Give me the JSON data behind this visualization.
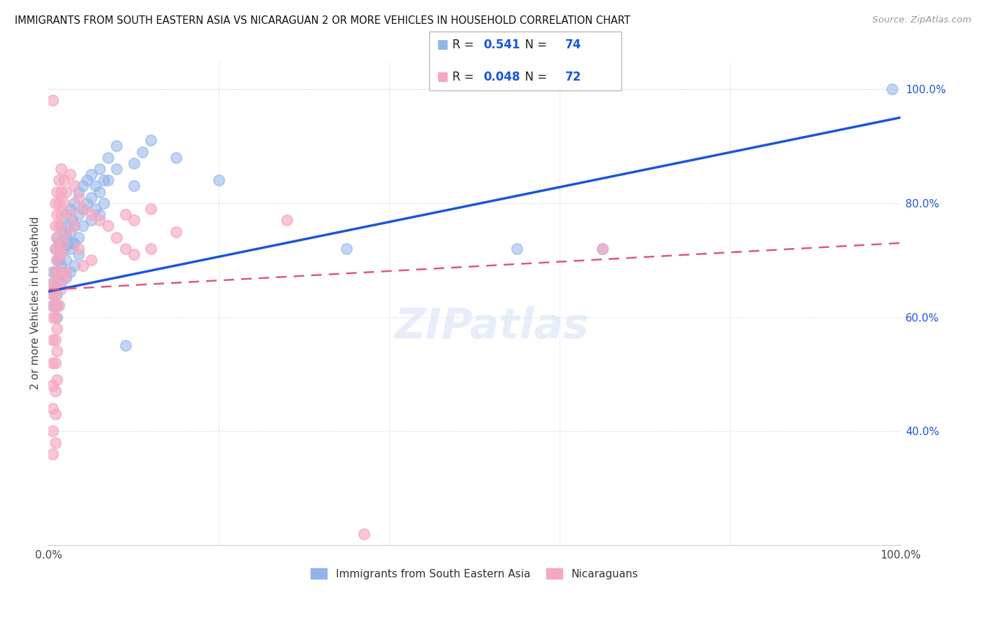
{
  "title": "IMMIGRANTS FROM SOUTH EASTERN ASIA VS NICARAGUAN 2 OR MORE VEHICLES IN HOUSEHOLD CORRELATION CHART",
  "source": "Source: ZipAtlas.com",
  "ylabel": "2 or more Vehicles in Household",
  "legend_label1": "Immigrants from South Eastern Asia",
  "legend_label2": "Nicaraguans",
  "R1": "0.541",
  "N1": "74",
  "R2": "0.048",
  "N2": "72",
  "blue_color": "#92b4e8",
  "pink_color": "#f5a8c0",
  "blue_line_color": "#1a56db",
  "pink_line_color": "#e05585",
  "title_color": "#111111",
  "source_color": "#999999",
  "label_color": "#1a56db",
  "xlim": [
    0.0,
    1.0
  ],
  "ylim": [
    0.2,
    1.05
  ],
  "right_ytick_vals": [
    0.4,
    0.6,
    0.8,
    1.0
  ],
  "right_ytick_labels": [
    "40.0%",
    "60.0%",
    "80.0%",
    "100.0%"
  ],
  "blue_scatter": [
    [
      0.005,
      0.66
    ],
    [
      0.005,
      0.68
    ],
    [
      0.005,
      0.64
    ],
    [
      0.005,
      0.62
    ],
    [
      0.008,
      0.72
    ],
    [
      0.008,
      0.68
    ],
    [
      0.008,
      0.65
    ],
    [
      0.008,
      0.62
    ],
    [
      0.01,
      0.74
    ],
    [
      0.01,
      0.7
    ],
    [
      0.01,
      0.68
    ],
    [
      0.01,
      0.66
    ],
    [
      0.01,
      0.64
    ],
    [
      0.01,
      0.62
    ],
    [
      0.01,
      0.6
    ],
    [
      0.012,
      0.73
    ],
    [
      0.012,
      0.7
    ],
    [
      0.012,
      0.67
    ],
    [
      0.015,
      0.76
    ],
    [
      0.015,
      0.72
    ],
    [
      0.015,
      0.69
    ],
    [
      0.015,
      0.66
    ],
    [
      0.018,
      0.75
    ],
    [
      0.018,
      0.72
    ],
    [
      0.018,
      0.68
    ],
    [
      0.02,
      0.78
    ],
    [
      0.02,
      0.74
    ],
    [
      0.02,
      0.7
    ],
    [
      0.02,
      0.67
    ],
    [
      0.022,
      0.76
    ],
    [
      0.022,
      0.73
    ],
    [
      0.025,
      0.79
    ],
    [
      0.025,
      0.75
    ],
    [
      0.025,
      0.72
    ],
    [
      0.025,
      0.68
    ],
    [
      0.028,
      0.77
    ],
    [
      0.028,
      0.73
    ],
    [
      0.03,
      0.8
    ],
    [
      0.03,
      0.76
    ],
    [
      0.03,
      0.73
    ],
    [
      0.03,
      0.69
    ],
    [
      0.035,
      0.82
    ],
    [
      0.035,
      0.78
    ],
    [
      0.035,
      0.74
    ],
    [
      0.035,
      0.71
    ],
    [
      0.04,
      0.83
    ],
    [
      0.04,
      0.79
    ],
    [
      0.04,
      0.76
    ],
    [
      0.045,
      0.84
    ],
    [
      0.045,
      0.8
    ],
    [
      0.05,
      0.85
    ],
    [
      0.05,
      0.81
    ],
    [
      0.05,
      0.77
    ],
    [
      0.055,
      0.83
    ],
    [
      0.055,
      0.79
    ],
    [
      0.06,
      0.86
    ],
    [
      0.06,
      0.82
    ],
    [
      0.06,
      0.78
    ],
    [
      0.065,
      0.84
    ],
    [
      0.065,
      0.8
    ],
    [
      0.07,
      0.88
    ],
    [
      0.07,
      0.84
    ],
    [
      0.08,
      0.9
    ],
    [
      0.08,
      0.86
    ],
    [
      0.09,
      0.55
    ],
    [
      0.1,
      0.87
    ],
    [
      0.1,
      0.83
    ],
    [
      0.11,
      0.89
    ],
    [
      0.12,
      0.91
    ],
    [
      0.15,
      0.88
    ],
    [
      0.2,
      0.84
    ],
    [
      0.35,
      0.72
    ],
    [
      0.55,
      0.72
    ],
    [
      0.65,
      0.72
    ],
    [
      0.99,
      1.0
    ]
  ],
  "pink_scatter": [
    [
      0.005,
      0.98
    ],
    [
      0.005,
      0.66
    ],
    [
      0.005,
      0.64
    ],
    [
      0.005,
      0.62
    ],
    [
      0.005,
      0.6
    ],
    [
      0.005,
      0.56
    ],
    [
      0.005,
      0.52
    ],
    [
      0.005,
      0.48
    ],
    [
      0.005,
      0.44
    ],
    [
      0.005,
      0.4
    ],
    [
      0.005,
      0.36
    ],
    [
      0.008,
      0.8
    ],
    [
      0.008,
      0.76
    ],
    [
      0.008,
      0.72
    ],
    [
      0.008,
      0.68
    ],
    [
      0.008,
      0.64
    ],
    [
      0.008,
      0.6
    ],
    [
      0.008,
      0.56
    ],
    [
      0.008,
      0.52
    ],
    [
      0.008,
      0.47
    ],
    [
      0.008,
      0.43
    ],
    [
      0.008,
      0.38
    ],
    [
      0.01,
      0.82
    ],
    [
      0.01,
      0.78
    ],
    [
      0.01,
      0.74
    ],
    [
      0.01,
      0.7
    ],
    [
      0.01,
      0.66
    ],
    [
      0.01,
      0.62
    ],
    [
      0.01,
      0.58
    ],
    [
      0.01,
      0.54
    ],
    [
      0.01,
      0.49
    ],
    [
      0.012,
      0.84
    ],
    [
      0.012,
      0.8
    ],
    [
      0.012,
      0.76
    ],
    [
      0.012,
      0.72
    ],
    [
      0.012,
      0.68
    ],
    [
      0.012,
      0.62
    ],
    [
      0.015,
      0.86
    ],
    [
      0.015,
      0.82
    ],
    [
      0.015,
      0.78
    ],
    [
      0.015,
      0.71
    ],
    [
      0.015,
      0.65
    ],
    [
      0.018,
      0.84
    ],
    [
      0.018,
      0.8
    ],
    [
      0.018,
      0.73
    ],
    [
      0.018,
      0.67
    ],
    [
      0.02,
      0.82
    ],
    [
      0.02,
      0.75
    ],
    [
      0.02,
      0.68
    ],
    [
      0.025,
      0.85
    ],
    [
      0.025,
      0.78
    ],
    [
      0.03,
      0.83
    ],
    [
      0.03,
      0.76
    ],
    [
      0.035,
      0.81
    ],
    [
      0.035,
      0.72
    ],
    [
      0.04,
      0.79
    ],
    [
      0.04,
      0.69
    ],
    [
      0.05,
      0.78
    ],
    [
      0.05,
      0.7
    ],
    [
      0.06,
      0.77
    ],
    [
      0.07,
      0.76
    ],
    [
      0.08,
      0.74
    ],
    [
      0.09,
      0.78
    ],
    [
      0.09,
      0.72
    ],
    [
      0.1,
      0.77
    ],
    [
      0.1,
      0.71
    ],
    [
      0.12,
      0.79
    ],
    [
      0.12,
      0.72
    ],
    [
      0.15,
      0.75
    ],
    [
      0.28,
      0.77
    ],
    [
      0.37,
      0.22
    ],
    [
      0.65,
      0.72
    ]
  ]
}
